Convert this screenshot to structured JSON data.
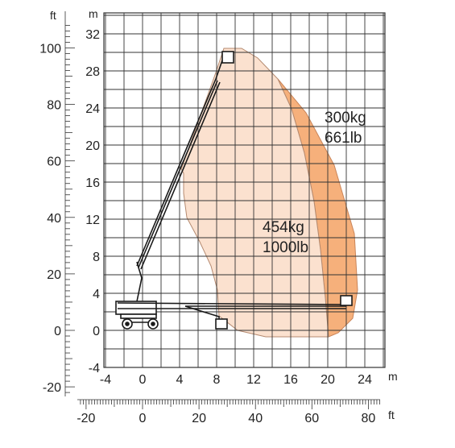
{
  "units": {
    "ft_left": "ft",
    "m_left": "m",
    "m_bottom": "m",
    "ft_bottom": "ft"
  },
  "axes": {
    "m_vertical_ticks": [
      "32",
      "28",
      "24",
      "20",
      "16",
      "12",
      "8",
      "4",
      "0",
      "-4"
    ],
    "ft_vertical_ticks": [
      "100",
      "80",
      "60",
      "40",
      "20",
      "0",
      "-20"
    ],
    "m_horizontal_ticks": [
      "-4",
      "0",
      "4",
      "8",
      "12",
      "16",
      "20",
      "24"
    ],
    "ft_horizontal_ticks": [
      "-20",
      "0",
      "20",
      "40",
      "60",
      "80"
    ]
  },
  "zones": {
    "inner": {
      "label_kg": "454kg",
      "label_lb": "1000lb",
      "color": "#fbe1cf"
    },
    "outer": {
      "label_kg": "300kg",
      "label_lb": "661lb",
      "color": "#f6b07b"
    }
  },
  "colors": {
    "grid": "#333333",
    "machine": "#1a1a1a"
  }
}
